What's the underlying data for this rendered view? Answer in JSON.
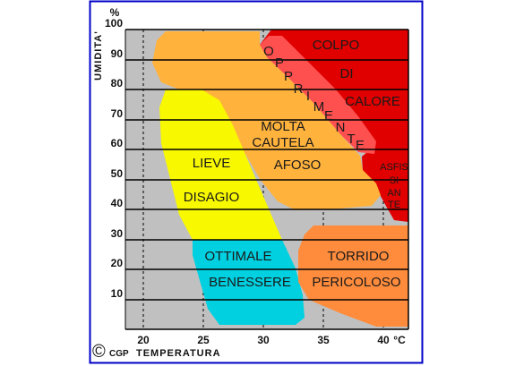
{
  "axes": {
    "y_title": "UMIDITA'",
    "y_unit": "%",
    "x_title": "TEMPERATURA",
    "x_unit": "°C",
    "y_ticks": [
      "100",
      "90",
      "80",
      "70",
      "60",
      "50",
      "40",
      "30",
      "20",
      "10"
    ],
    "x_ticks": [
      "20",
      "25",
      "30",
      "35",
      "40"
    ]
  },
  "copyright": "©",
  "credit": "CGP",
  "regions": {
    "colpo_di_calore": [
      "COLPO",
      "DI",
      "CALORE"
    ],
    "oppimente": [
      "O",
      "P",
      "P",
      "R",
      "I",
      "M",
      "E",
      "N",
      "T",
      "E"
    ],
    "asfissiante": [
      "ASFIS",
      "SI",
      "AN",
      "TE"
    ],
    "molta_cautela": [
      "MOLTA",
      "CAUTELA"
    ],
    "afoso": "AFOSO",
    "lieve_disagio": [
      "LIEVE",
      "DISAGIO"
    ],
    "ottimale_benessere": [
      "OTTIMALE",
      "BENESSERE"
    ],
    "torrido_pericoloso": [
      "TORRIDO",
      "PERICOLOSO"
    ]
  },
  "colors": {
    "background": "#c0c0c0",
    "red": "#e00000",
    "orange_light": "#ffb23c",
    "yellow": "#f8f800",
    "cyan": "#00d0e0",
    "orange_dark": "#ff8c3c",
    "border": "#0000c8"
  }
}
